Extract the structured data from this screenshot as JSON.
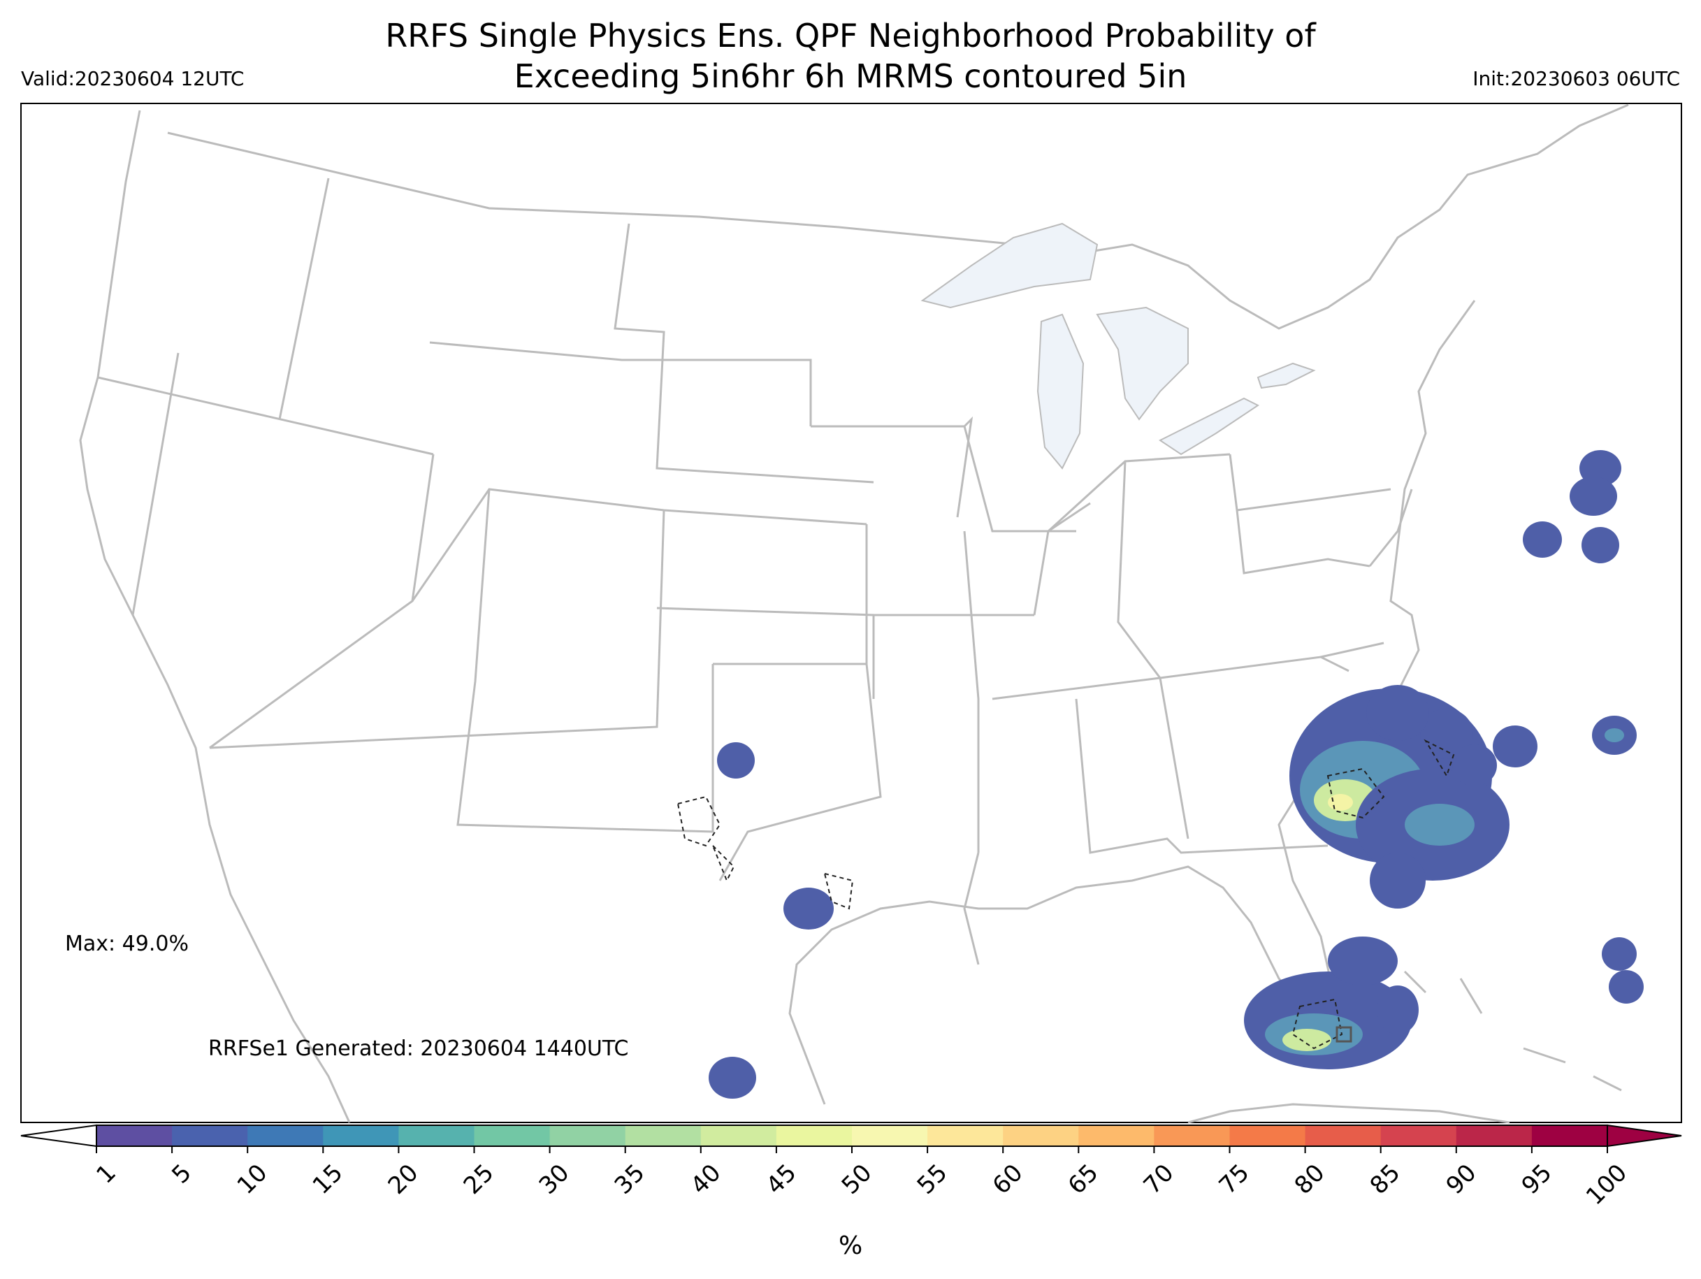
{
  "title_line1": "RRFS Single Physics Ens. QPF Neighborhood Probability of",
  "title_line2": "Exceeding 5in6hr 6h MRMS contoured 5in",
  "valid": "Valid:20230604 12UTC",
  "init": "Init:20230603 06UTC",
  "max_note": "Max: 49.0%",
  "generated_note": "RRFSe1 Generated: 20230604 1440UTC",
  "colorbar": {
    "ticks": [
      "1",
      "5",
      "10",
      "15",
      "20",
      "25",
      "30",
      "35",
      "40",
      "45",
      "50",
      "55",
      "60",
      "65",
      "70",
      "75",
      "80",
      "85",
      "90",
      "95",
      "100"
    ],
    "colors": [
      "#5e4fa2",
      "#4a62ae",
      "#3e79b6",
      "#3f96b7",
      "#56b2ae",
      "#72c7a5",
      "#91d2a4",
      "#b2e0a2",
      "#d1ec9f",
      "#eaf69f",
      "#f7f7b0",
      "#fde79a",
      "#fdd283",
      "#fdba6b",
      "#f99856",
      "#f47a48",
      "#e75d4a",
      "#d5434f",
      "#bb2649",
      "#9e0142"
    ],
    "unit": "%"
  },
  "map_colors": {
    "lakes": "#eef3f9",
    "borders": "#bbbbbb",
    "prob_low": "#4f5fa8",
    "prob_mid": "#5b96b8",
    "prob_high": "#cdeaa0",
    "prob_peak": "#f4f4a6"
  }
}
